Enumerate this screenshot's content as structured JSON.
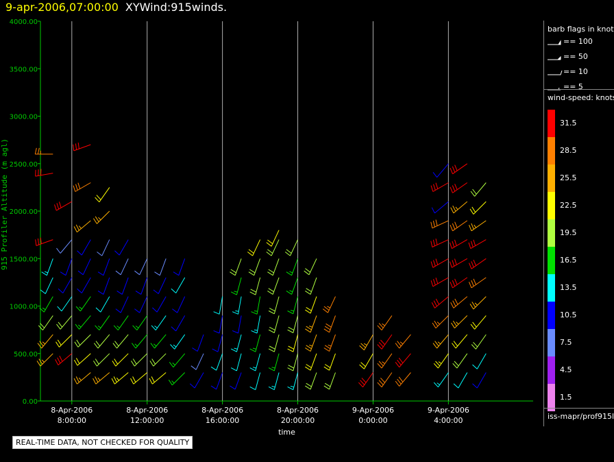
{
  "header": {
    "datetime": "9-apr-2006,07:00:00",
    "product": "XYWind:915winds."
  },
  "footer_note": "REAL-TIME DATA, NOT CHECKED FOR QUALITY",
  "legend": {
    "barb_title": "barb flags in knots",
    "barb_flags": [
      {
        "label": "== 100",
        "type": "pennant"
      },
      {
        "label": "== 50",
        "type": "pennant-half"
      },
      {
        "label": "== 10",
        "type": "full"
      },
      {
        "label": "== 5",
        "type": "half"
      }
    ],
    "speed_title": "wind-speed: knots",
    "colorbar": [
      {
        "label": "31.5",
        "color": "#ff0000"
      },
      {
        "label": "28.5",
        "color": "#ff8000"
      },
      {
        "label": "25.5",
        "color": "#ffb000"
      },
      {
        "label": "22.5",
        "color": "#ffff00"
      },
      {
        "label": "19.5",
        "color": "#b0ff40"
      },
      {
        "label": "16.5",
        "color": "#00e000"
      },
      {
        "label": "13.5",
        "color": "#00ffff"
      },
      {
        "label": "10.5",
        "color": "#0000ff"
      },
      {
        "label": "7.5",
        "color": "#6a8cff"
      },
      {
        "label": "4.5",
        "color": "#a020f0"
      },
      {
        "label": "1.5",
        "color": "#ee82ee"
      }
    ],
    "source": "iss-mapr/prof915l"
  },
  "chart_data": {
    "type": "scatter",
    "title": "9-apr-2006,07:00:00  XYWind:915winds.",
    "ylabel": "915 Profiler Altitude (m agl)",
    "xlabel": "time",
    "ylim": [
      0,
      4000
    ],
    "yticks": [
      "0.00",
      "500.00",
      "1000.00",
      "1500.00",
      "2000.00",
      "2500.00",
      "3000.00",
      "3500.00",
      "4000.00"
    ],
    "xticks": [
      {
        "date": "8-Apr-2006",
        "time": "8:00:00"
      },
      {
        "date": "8-Apr-2006",
        "time": "12:00:00"
      },
      {
        "date": "8-Apr-2006",
        "time": "16:00:00"
      },
      {
        "date": "8-Apr-2006",
        "time": "20:00:00"
      },
      {
        "date": "9-Apr-2006",
        "time": "0:00:00"
      },
      {
        "date": "9-Apr-2006",
        "time": "4:00:00"
      }
    ],
    "grid": "vertical lines at x ticks",
    "colors": {
      "axis": "#00cc00",
      "grid": "#b0b0b0",
      "xlabels": "#ffffff"
    },
    "series": [
      {
        "x": "8-Apr-2006 7:00",
        "profile": [
          [
            500,
            24,
            225
          ],
          [
            700,
            26,
            220
          ],
          [
            900,
            19,
            215
          ],
          [
            1100,
            17,
            210
          ],
          [
            1300,
            12,
            205
          ],
          [
            1500,
            14,
            200
          ],
          [
            1700,
            30,
            250
          ],
          [
            2400,
            31,
            260
          ],
          [
            2600,
            27,
            270
          ]
        ]
      },
      {
        "x": "8-Apr-2006 8:00",
        "profile": [
          [
            500,
            31,
            230
          ],
          [
            700,
            22,
            225
          ],
          [
            900,
            18,
            220
          ],
          [
            1100,
            12,
            215
          ],
          [
            1300,
            11,
            210
          ],
          [
            1500,
            10,
            200
          ],
          [
            1700,
            8,
            220
          ],
          [
            2100,
            31,
            240
          ]
        ]
      },
      {
        "x": "8-Apr-2006 9:00",
        "profile": [
          [
            300,
            24,
            230
          ],
          [
            500,
            22,
            228
          ],
          [
            700,
            19,
            225
          ],
          [
            900,
            17,
            220
          ],
          [
            1100,
            15,
            215
          ],
          [
            1300,
            11,
            210
          ],
          [
            1500,
            9,
            205
          ],
          [
            1700,
            9,
            210
          ],
          [
            1900,
            25,
            230
          ],
          [
            2300,
            28,
            240
          ],
          [
            2700,
            30,
            250
          ]
        ]
      },
      {
        "x": "8-Apr-2006 10:00",
        "profile": [
          [
            300,
            24,
            230
          ],
          [
            500,
            20,
            225
          ],
          [
            700,
            18,
            220
          ],
          [
            900,
            16,
            215
          ],
          [
            1100,
            12,
            210
          ],
          [
            1300,
            10,
            200
          ],
          [
            1500,
            9,
            200
          ],
          [
            1700,
            8,
            205
          ],
          [
            2000,
            26,
            225
          ],
          [
            2250,
            22,
            215
          ]
        ]
      },
      {
        "x": "8-Apr-2006 11:00",
        "profile": [
          [
            300,
            23,
            230
          ],
          [
            500,
            21,
            225
          ],
          [
            700,
            18,
            220
          ],
          [
            900,
            16,
            215
          ],
          [
            1100,
            11,
            205
          ],
          [
            1300,
            10,
            200
          ],
          [
            1500,
            8,
            205
          ],
          [
            1700,
            10,
            210
          ]
        ]
      },
      {
        "x": "8-Apr-2006 12:00",
        "profile": [
          [
            300,
            22,
            230
          ],
          [
            500,
            19,
            225
          ],
          [
            700,
            17,
            220
          ],
          [
            900,
            15,
            215
          ],
          [
            1100,
            11,
            205
          ],
          [
            1300,
            9,
            200
          ],
          [
            1500,
            8,
            205
          ]
        ]
      },
      {
        "x": "8-Apr-2006 13:00",
        "profile": [
          [
            300,
            21,
            230
          ],
          [
            500,
            18,
            225
          ],
          [
            700,
            16,
            220
          ],
          [
            900,
            13,
            215
          ],
          [
            1100,
            11,
            210
          ],
          [
            1300,
            9,
            205
          ],
          [
            1500,
            8,
            200
          ]
        ]
      },
      {
        "x": "8-Apr-2006 14:00",
        "profile": [
          [
            300,
            17,
            225
          ],
          [
            500,
            16,
            220
          ],
          [
            700,
            13,
            215
          ],
          [
            900,
            11,
            210
          ],
          [
            1100,
            10,
            205
          ],
          [
            1300,
            12,
            210
          ],
          [
            1500,
            9,
            200
          ]
        ]
      },
      {
        "x": "8-Apr-2006 15:00",
        "profile": [
          [
            300,
            10,
            210
          ],
          [
            500,
            8,
            205
          ],
          [
            700,
            11,
            200
          ]
        ]
      },
      {
        "x": "8-Apr-2006 16:00",
        "profile": [
          [
            300,
            10,
            200
          ],
          [
            500,
            12,
            200
          ],
          [
            700,
            11,
            195
          ],
          [
            900,
            10,
            190
          ],
          [
            1100,
            12,
            190
          ]
        ]
      },
      {
        "x": "8-Apr-2006 17:00",
        "profile": [
          [
            300,
            11,
            200
          ],
          [
            500,
            12,
            195
          ],
          [
            700,
            13,
            195
          ],
          [
            900,
            11,
            190
          ],
          [
            1100,
            14,
            190
          ],
          [
            1300,
            16,
            195
          ],
          [
            1500,
            18,
            200
          ]
        ]
      },
      {
        "x": "8-Apr-2006 18:00",
        "profile": [
          [
            300,
            12,
            195
          ],
          [
            500,
            14,
            195
          ],
          [
            700,
            15,
            195
          ],
          [
            900,
            14,
            190
          ],
          [
            1100,
            16,
            190
          ],
          [
            1300,
            19,
            195
          ],
          [
            1500,
            20,
            200
          ],
          [
            1700,
            21,
            205
          ]
        ]
      },
      {
        "x": "8-Apr-2006 19:00",
        "profile": [
          [
            300,
            14,
            195
          ],
          [
            500,
            17,
            195
          ],
          [
            700,
            18,
            195
          ],
          [
            900,
            18,
            195
          ],
          [
            1100,
            19,
            195
          ],
          [
            1300,
            20,
            200
          ],
          [
            1500,
            19,
            200
          ],
          [
            1700,
            20,
            205
          ],
          [
            1800,
            21,
            205
          ]
        ]
      },
      {
        "x": "8-Apr-2006 20:00",
        "profile": [
          [
            300,
            13,
            195
          ],
          [
            500,
            20,
            195
          ],
          [
            700,
            22,
            195
          ],
          [
            900,
            19,
            195
          ],
          [
            1100,
            17,
            195
          ],
          [
            1300,
            16,
            200
          ],
          [
            1500,
            17,
            200
          ],
          [
            1700,
            19,
            205
          ]
        ]
      },
      {
        "x": "8-Apr-2006 21:00",
        "profile": [
          [
            300,
            18,
            200
          ],
          [
            500,
            21,
            200
          ],
          [
            700,
            26,
            200
          ],
          [
            900,
            24,
            200
          ],
          [
            1100,
            21,
            200
          ],
          [
            1300,
            19,
            200
          ],
          [
            1500,
            20,
            205
          ]
        ]
      },
      {
        "x": "8-Apr-2006 22:00",
        "profile": [
          [
            300,
            20,
            200
          ],
          [
            500,
            22,
            200
          ],
          [
            700,
            27,
            200
          ],
          [
            900,
            28,
            200
          ],
          [
            1100,
            27,
            205
          ]
        ]
      },
      {
        "x": "9-Apr-2006 0:00",
        "profile": [
          [
            300,
            30,
            215
          ],
          [
            500,
            22,
            210
          ],
          [
            700,
            24,
            210
          ]
        ]
      },
      {
        "x": "9-Apr-2006 1:00",
        "profile": [
          [
            300,
            29,
            215
          ],
          [
            500,
            27,
            215
          ],
          [
            700,
            31,
            215
          ],
          [
            900,
            27,
            215
          ]
        ]
      },
      {
        "x": "9-Apr-2006 2:00",
        "profile": [
          [
            300,
            28,
            220
          ],
          [
            500,
            31,
            220
          ],
          [
            700,
            27,
            220
          ]
        ]
      },
      {
        "x": "9-Apr-2006 4:00",
        "profile": [
          [
            300,
            14,
            215
          ],
          [
            500,
            23,
            215
          ],
          [
            700,
            24,
            220
          ],
          [
            900,
            27,
            225
          ],
          [
            1100,
            31,
            230
          ],
          [
            1300,
            31,
            240
          ],
          [
            1500,
            31,
            240
          ],
          [
            1700,
            30,
            245
          ],
          [
            1900,
            29,
            245
          ],
          [
            2100,
            10,
            230
          ],
          [
            2300,
            31,
            240
          ],
          [
            2500,
            10,
            220
          ]
        ]
      },
      {
        "x": "9-Apr-2006 5:00",
        "profile": [
          [
            300,
            12,
            210
          ],
          [
            500,
            20,
            215
          ],
          [
            700,
            22,
            220
          ],
          [
            900,
            25,
            225
          ],
          [
            1100,
            28,
            230
          ],
          [
            1300,
            31,
            235
          ],
          [
            1500,
            31,
            240
          ],
          [
            1700,
            31,
            240
          ],
          [
            1900,
            28,
            235
          ],
          [
            2100,
            24,
            230
          ],
          [
            2300,
            31,
            235
          ],
          [
            2500,
            30,
            235
          ]
        ]
      },
      {
        "x": "9-Apr-2006 6:00",
        "profile": [
          [
            300,
            11,
            210
          ],
          [
            500,
            12,
            210
          ],
          [
            700,
            19,
            215
          ],
          [
            900,
            22,
            220
          ],
          [
            1100,
            26,
            225
          ],
          [
            1300,
            29,
            235
          ],
          [
            1500,
            30,
            235
          ],
          [
            1700,
            31,
            240
          ],
          [
            1900,
            25,
            235
          ],
          [
            2100,
            21,
            225
          ],
          [
            2300,
            18,
            220
          ]
        ]
      }
    ]
  }
}
